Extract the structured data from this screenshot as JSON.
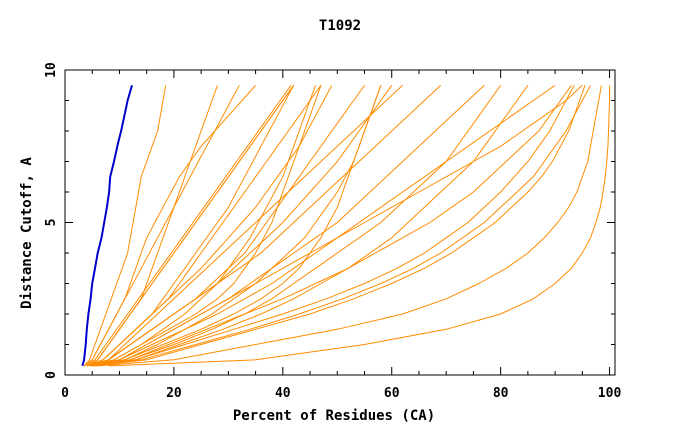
{
  "chart_data": {
    "type": "line",
    "title": "T1092",
    "xlabel": "Percent of Residues (CA)",
    "ylabel": "Distance Cutoff, A",
    "xlim": [
      0,
      101
    ],
    "ylim": [
      0,
      10
    ],
    "x_ticks": [
      "0",
      "20",
      "40",
      "60",
      "80",
      "100"
    ],
    "y_ticks": [
      "0",
      "5",
      "10"
    ],
    "grid": false,
    "colors": {
      "best": "#0000cc",
      "others": "#ff8c00",
      "axes": "#000000"
    },
    "y": [
      0.3,
      0.5,
      1,
      1.5,
      2,
      2.5,
      3,
      3.5,
      4,
      4.5,
      5,
      5.5,
      6,
      6.5,
      7,
      7.5,
      8,
      8.5,
      9,
      9.5
    ],
    "series": [
      {
        "style": "best",
        "x": [
          3.2,
          3.5,
          3.8,
          4.0,
          4.3,
          4.7,
          5.0,
          5.5,
          6.0,
          6.7,
          7.2,
          7.7,
          8.1,
          8.3,
          9.0,
          9.6,
          10.3,
          10.9,
          11.5,
          12.3
        ]
      },
      {
        "style": "other",
        "x": [
          3.5,
          5,
          6.5,
          8,
          9.5,
          11,
          12,
          13,
          14,
          15,
          16.5,
          18,
          19.5,
          21,
          23,
          25,
          27.5,
          30,
          32.5,
          35
        ]
      },
      {
        "style": "other",
        "x": [
          4,
          6,
          8,
          10,
          12,
          14,
          16,
          18,
          20,
          22,
          24,
          26,
          28,
          30,
          32,
          34,
          36,
          38,
          40,
          42
        ]
      },
      {
        "style": "other",
        "x": [
          4,
          7,
          10,
          13,
          16,
          19,
          22,
          25,
          27.5,
          30,
          32.5,
          35,
          37,
          39,
          41,
          43,
          44.5,
          46,
          47.5,
          49
        ]
      },
      {
        "style": "other",
        "x": [
          4.5,
          8,
          12,
          16,
          20,
          24,
          28,
          31,
          34,
          37,
          40,
          42.5,
          45,
          47.5,
          50,
          52,
          54,
          56,
          58,
          60
        ]
      },
      {
        "style": "other",
        "x": [
          5,
          10,
          15,
          20,
          25,
          30,
          34,
          38,
          42,
          46,
          50,
          53,
          56,
          59,
          62,
          65,
          68,
          71,
          74,
          77
        ]
      },
      {
        "style": "other",
        "x": [
          5,
          12,
          19,
          26,
          33,
          40,
          46,
          52,
          57,
          62,
          67,
          71,
          75,
          78,
          81,
          84,
          87,
          89,
          91,
          93
        ]
      },
      {
        "style": "other",
        "x": [
          5.5,
          15,
          25,
          35,
          45,
          53,
          60,
          66,
          71,
          75,
          79,
          82,
          85,
          87.5,
          89.5,
          91,
          92.5,
          93.5,
          94.5,
          95.5
        ]
      },
      {
        "style": "other",
        "x": [
          6,
          20,
          35,
          50,
          62,
          70,
          76,
          81,
          85,
          88,
          90.5,
          92.5,
          94,
          95,
          96,
          96.5,
          97,
          97.5,
          98,
          98.5
        ]
      },
      {
        "style": "other",
        "x": [
          8,
          35,
          55,
          70,
          80,
          86,
          90,
          93,
          95,
          96.5,
          97.5,
          98.3,
          98.8,
          99.2,
          99.5,
          99.7,
          99.8,
          99.9,
          100,
          100
        ]
      },
      {
        "style": "other",
        "x": [
          3.5,
          4.5,
          5.5,
          6.5,
          7.5,
          8.5,
          9.5,
          10.5,
          11.5,
          12,
          12.5,
          13,
          13.5,
          14,
          15,
          16,
          17,
          17.5,
          18,
          18.5
        ]
      },
      {
        "style": "other",
        "x": [
          4,
          6,
          8,
          10,
          12,
          14,
          15,
          16,
          17,
          18,
          19,
          20,
          21,
          22,
          23,
          24,
          25,
          26,
          27,
          28
        ]
      },
      {
        "style": "other",
        "x": [
          4,
          7,
          10,
          13,
          16,
          18,
          20,
          22,
          24,
          26,
          28,
          30,
          31.5,
          33,
          34.5,
          36,
          37.5,
          39,
          40.5,
          42
        ]
      },
      {
        "style": "other",
        "x": [
          4.5,
          9,
          14,
          18,
          22,
          25,
          28,
          30,
          32,
          34,
          35.5,
          37,
          38.5,
          40,
          41,
          42,
          43,
          44,
          45,
          46
        ]
      },
      {
        "style": "other",
        "x": [
          5,
          11,
          17,
          22,
          27,
          31,
          35,
          38,
          41,
          44,
          46,
          48,
          50,
          51.5,
          53,
          54,
          55,
          56,
          57,
          58
        ]
      },
      {
        "style": "other",
        "x": [
          5,
          13,
          21,
          29,
          36,
          42,
          47,
          52,
          56,
          60,
          63,
          66,
          69,
          72,
          75,
          77,
          79,
          81,
          83,
          85
        ]
      },
      {
        "style": "other",
        "x": [
          5,
          14,
          24,
          34,
          43,
          51,
          58,
          64,
          69,
          73,
          77,
          80,
          83,
          86,
          88,
          90,
          92,
          93.5,
          95,
          96.5
        ]
      },
      {
        "style": "other",
        "x": [
          4.5,
          10,
          16,
          22,
          28,
          33,
          38,
          42,
          46,
          50,
          54,
          58,
          62,
          66,
          70,
          74,
          78,
          82,
          86,
          90
        ]
      },
      {
        "style": "other",
        "x": [
          4,
          8,
          12,
          16,
          20,
          24,
          28,
          32,
          36,
          39,
          42,
          45,
          48,
          51,
          54,
          57,
          60,
          63,
          66,
          69
        ]
      },
      {
        "style": "other",
        "x": [
          4,
          7,
          10,
          13,
          16,
          19,
          21,
          23,
          25,
          27,
          29,
          31,
          33,
          35,
          37,
          39,
          41,
          43,
          45,
          47
        ]
      },
      {
        "style": "other",
        "x": [
          3.5,
          5.5,
          7.5,
          9.5,
          11.5,
          13.5,
          15.5,
          17.5,
          19.5,
          21.5,
          23.5,
          25.5,
          27.5,
          29.5,
          31.5,
          33.5,
          35.5,
          37.5,
          39.5,
          41.5
        ]
      },
      {
        "style": "other",
        "x": [
          3.5,
          5,
          6.5,
          8,
          9.5,
          11,
          12.5,
          14,
          15.5,
          17,
          18.5,
          20,
          21.5,
          23,
          24.5,
          26,
          27.5,
          29,
          30.5,
          32
        ]
      },
      {
        "style": "other",
        "x": [
          4.5,
          9,
          14,
          19,
          24,
          28,
          31,
          33,
          35,
          36.5,
          38,
          39,
          40,
          41,
          42,
          43,
          44,
          45,
          46,
          47
        ]
      },
      {
        "style": "other",
        "x": [
          5,
          11,
          18,
          25,
          31,
          36,
          40,
          43,
          45,
          47,
          48.5,
          50,
          51,
          52,
          53,
          54,
          55,
          56,
          57,
          58
        ]
      },
      {
        "style": "other",
        "x": [
          5,
          12,
          20,
          27,
          33,
          38,
          42,
          46,
          50,
          54,
          58,
          61,
          64,
          67,
          70,
          72,
          74,
          76,
          78,
          80
        ]
      },
      {
        "style": "other",
        "x": [
          5.5,
          13,
          22,
          31,
          40,
          48,
          55,
          61,
          66,
          70,
          74,
          77,
          80,
          82.5,
          85,
          87,
          89,
          90.5,
          92,
          93.5
        ]
      },
      {
        "style": "other",
        "x": [
          4,
          8,
          12,
          16,
          20,
          24,
          27,
          30,
          33,
          35,
          37,
          39,
          41,
          43,
          45,
          47,
          49,
          51,
          53,
          55
        ]
      },
      {
        "style": "other",
        "x": [
          4,
          6,
          8,
          10,
          12,
          14,
          16,
          18,
          20,
          22,
          24,
          26,
          28,
          30,
          32,
          34,
          36,
          38,
          40,
          42
        ]
      },
      {
        "style": "other",
        "x": [
          4.5,
          8,
          11,
          14,
          17,
          20,
          23,
          26,
          29,
          32,
          35,
          38,
          41,
          44,
          47,
          50,
          53,
          56,
          59,
          62
        ]
      },
      {
        "style": "other",
        "x": [
          5,
          10,
          15,
          20,
          25,
          30,
          35,
          40,
          45,
          50,
          55,
          60,
          65,
          70,
          75,
          80,
          84,
          88,
          92,
          95
        ]
      }
    ]
  }
}
